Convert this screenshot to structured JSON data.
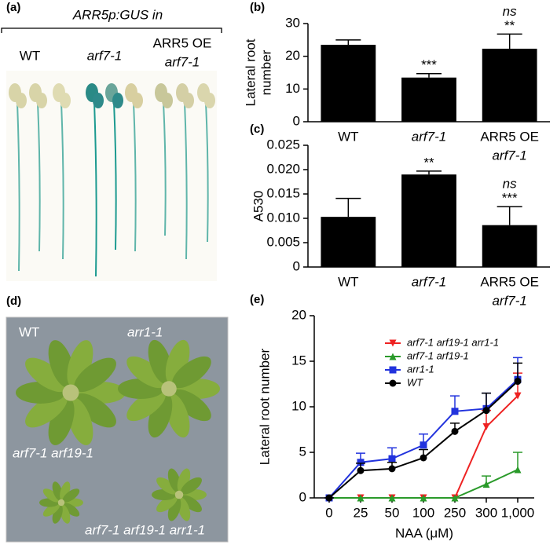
{
  "panels": {
    "a": {
      "label": "(a)",
      "title": "ARR5p:GUS in",
      "groups": [
        "WT",
        "arf7-1",
        [
          "ARR5 OE",
          "arf7-1"
        ]
      ]
    },
    "d": {
      "label": "(d)",
      "plants": [
        "WT",
        "arr1-1",
        "arf7-1 arf19-1",
        "arf7-1 arf19-1 arr1-1"
      ]
    }
  },
  "chart_data": [
    {
      "type": "bar",
      "label": "(b)",
      "y_label": [
        "Lateral root",
        "number"
      ],
      "color": "#000000",
      "categories": [
        "WT",
        "arf7-1",
        [
          "ARR5 OE",
          "arf7-1"
        ]
      ],
      "values": [
        23.5,
        13.5,
        22.3
      ],
      "errors": [
        1.5,
        1.2,
        4.5
      ],
      "annotations": [
        [],
        [
          {
            "text": "***"
          }
        ],
        [
          {
            "text": "ns"
          },
          {
            "text": "**",
            "color": "#e8231f"
          }
        ]
      ],
      "ylim": [
        0,
        30
      ],
      "yticks": [
        0,
        10,
        20,
        30
      ]
    },
    {
      "type": "bar",
      "label": "(c)",
      "y_label": [
        "A530"
      ],
      "color": "#000000",
      "categories": [
        "WT",
        "arf7-1",
        [
          "ARR5 OE",
          "arf7-1"
        ]
      ],
      "values": [
        0.0103,
        0.019,
        0.0086
      ],
      "errors": [
        0.0038,
        0.0007,
        0.0038
      ],
      "annotations": [
        [],
        [
          {
            "text": "**"
          }
        ],
        [
          {
            "text": "ns"
          },
          {
            "text": "***",
            "color": "#e8231f"
          }
        ]
      ],
      "ylim": [
        0,
        0.025
      ],
      "yticks": [
        0,
        0.005,
        {
          "value": 0.01,
          "label": "0.010"
        },
        0.015,
        {
          "value": 0.02,
          "label": "0.020"
        },
        0.025
      ]
    },
    {
      "type": "line",
      "label": "(e)",
      "y_label": [
        "Lateral root number"
      ],
      "x_label": "NAA (μM)",
      "categories": [
        "0",
        "25",
        "50",
        "100",
        "250",
        "300",
        "1,000"
      ],
      "ylim": [
        0,
        20
      ],
      "yticks": [
        0,
        5,
        10,
        15,
        20
      ],
      "legend": "top-right",
      "series": [
        {
          "name": "arf7-1 arf19-1 arr1-1",
          "color": "#ee2222",
          "marker": "triangle-down",
          "values": [
            0,
            0,
            0,
            0,
            0,
            7.8,
            11.2
          ],
          "errors": [
            0,
            0,
            0,
            0,
            0,
            1.8,
            2.5
          ]
        },
        {
          "name": "arf7-1 arf19-1",
          "color": "#2a9a2a",
          "marker": "triangle-up",
          "values": [
            0,
            0,
            0,
            0,
            0,
            1.5,
            3.1
          ],
          "errors": [
            0,
            0,
            0,
            0,
            0,
            0.9,
            1.9
          ]
        },
        {
          "name": "arr1-1",
          "color": "#2233dd",
          "marker": "square",
          "values": [
            0,
            3.9,
            4.3,
            5.8,
            9.5,
            9.8,
            13
          ],
          "errors": [
            0,
            1,
            1.2,
            1.2,
            1.7,
            1.7,
            2.4
          ]
        },
        {
          "name": "WT",
          "color": "#000000",
          "marker": "circle",
          "values": [
            0,
            3,
            3.2,
            4.4,
            7.3,
            9.6,
            12.8
          ],
          "errors": [
            0,
            0.8,
            0.7,
            0.9,
            0.9,
            1.9,
            2
          ]
        }
      ]
    }
  ]
}
